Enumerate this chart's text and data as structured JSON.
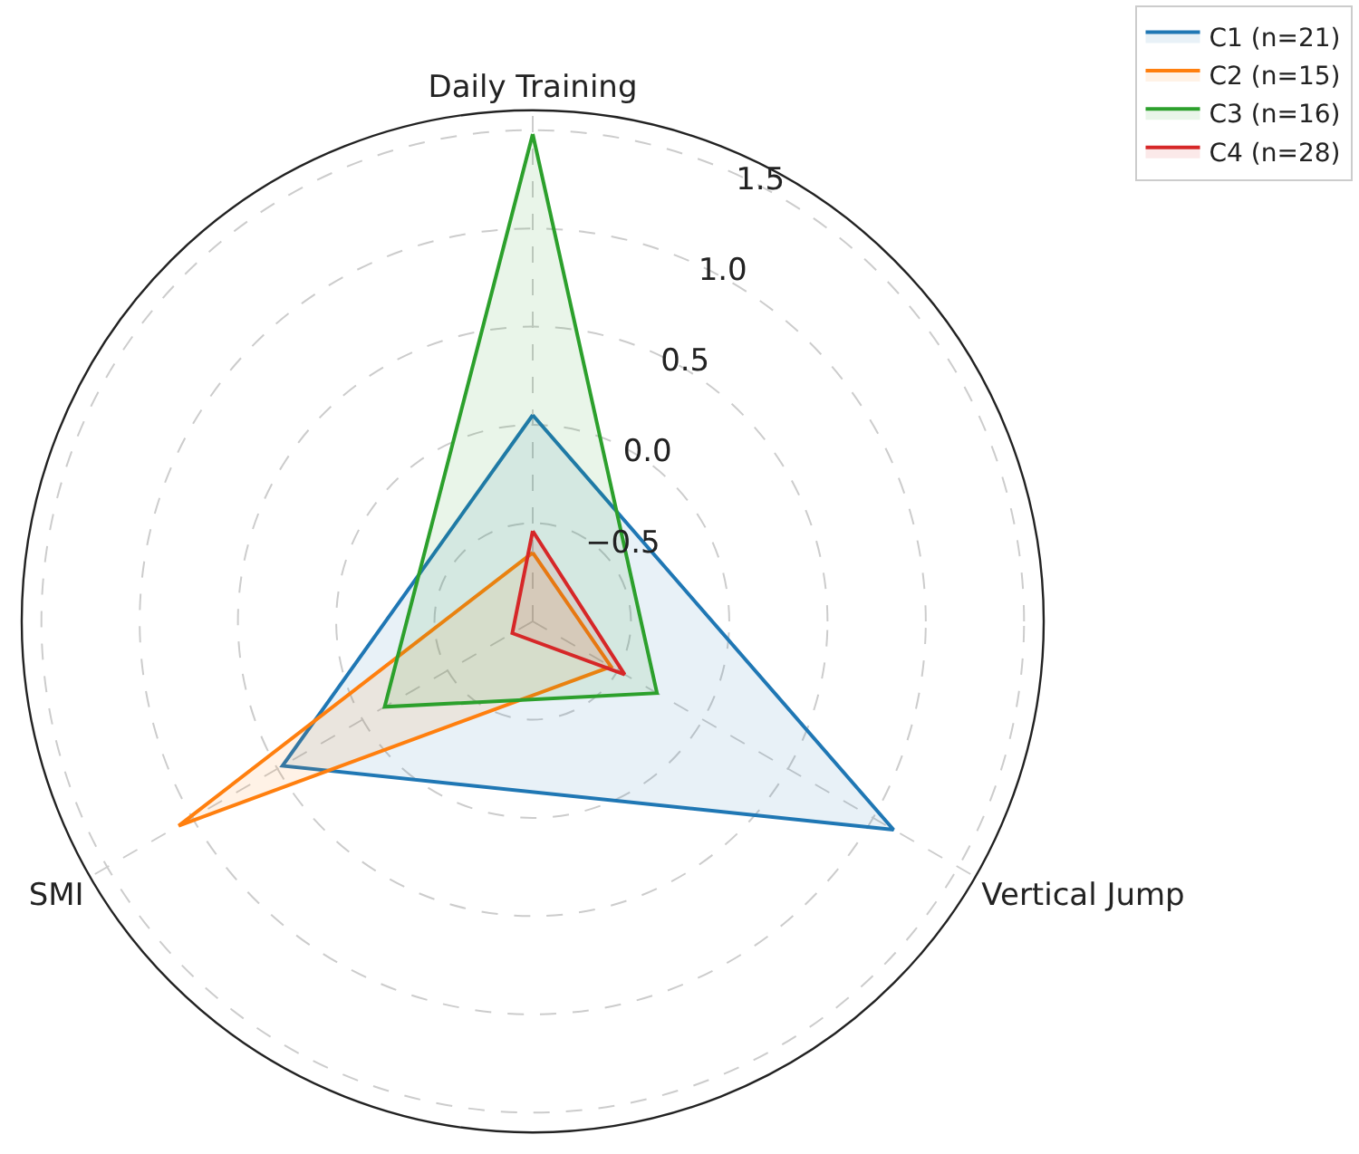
{
  "chart_data": {
    "type": "radar",
    "categories": [
      "Daily Training",
      "Vertical Jump",
      "SMI"
    ],
    "series": [
      {
        "name": "C1 (n=21)",
        "color": "#1f77b4",
        "values": [
          0.05,
          1.12,
          0.47
        ]
      },
      {
        "name": "C2 (n=15)",
        "color": "#ff7f0e",
        "values": [
          -0.65,
          -0.54,
          1.08
        ]
      },
      {
        "name": "C3 (n=16)",
        "color": "#2ca02c",
        "values": [
          1.48,
          -0.27,
          -0.13
        ]
      },
      {
        "name": "C4 (n=28)",
        "color": "#d62728",
        "values": [
          -0.54,
          -0.46,
          -0.88
        ]
      }
    ],
    "ylim": [
      -1.0,
      1.6
    ],
    "yticks": [
      -0.5,
      {
        "value": 0,
        "label": "0.0"
      },
      0.5,
      {
        "value": 1,
        "label": "1.0"
      },
      1.5
    ],
    "grid": true,
    "legend": "top right",
    "marker": "none",
    "line_style": "solid"
  }
}
